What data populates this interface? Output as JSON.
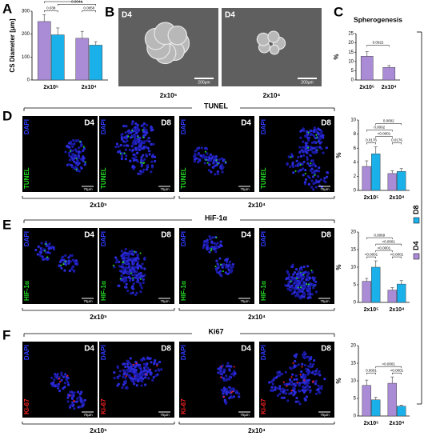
{
  "panel_labels": [
    "A",
    "B",
    "C",
    "D",
    "E",
    "F"
  ],
  "legend": [
    {
      "name": "D8",
      "color": "#1ab0ea"
    },
    {
      "name": "D4",
      "color": "#a98bd6"
    }
  ],
  "panel_b": {
    "images": [
      {
        "day": "D4",
        "scale": "200μm",
        "group": "2x10⁵"
      },
      {
        "day": "D4",
        "scale": "200μm",
        "group": "2x10⁴"
      }
    ]
  },
  "rows": [
    {
      "title": "TUNEL",
      "counterstain": "DAPI",
      "stain": "TUNEL",
      "stain_color": "#22dd22",
      "days": [
        "D4",
        "D8",
        "D4",
        "D8"
      ],
      "scale": "75μm",
      "groups": [
        "2x10⁵",
        "2x10⁴"
      ]
    },
    {
      "title": "HiF-1α",
      "counterstain": "DAPI",
      "stain": "HIF-1α",
      "stain_color": "#22dd22",
      "days": [
        "D4",
        "D8",
        "D4",
        "D8"
      ],
      "scale": "75μm",
      "groups": [
        "2x10⁵",
        "2x10⁴"
      ]
    },
    {
      "title": "Ki67",
      "counterstain": "DAPI",
      "stain": "Ki-67",
      "stain_color": "#ff2222",
      "days": [
        "D4",
        "D8",
        "D4",
        "D8"
      ],
      "scale": "75μm",
      "groups": [
        "2x10⁵",
        "2x10⁴"
      ]
    }
  ],
  "chart_data": [
    {
      "type": "bar",
      "y_label": "CS Diameter [μm]",
      "categories": [
        "2x10⁵",
        "2x10⁴"
      ],
      "series": [
        {
          "color": "#a98bd6",
          "values": [
            255,
            182
          ],
          "errors": [
            30,
            30
          ]
        },
        {
          "color": "#1ab0ea",
          "values": [
            197,
            152
          ],
          "errors": [
            30,
            15
          ]
        }
      ],
      "ylim": [
        0,
        300
      ],
      "yticks": [
        0,
        100,
        200,
        300
      ],
      "significance": [
        "0.038",
        "0.0058",
        "0.0044",
        "0.0020"
      ]
    },
    {
      "type": "bar",
      "title": "Spherogenesis",
      "y_label": "%",
      "categories": [
        "2x10⁵",
        "2x10⁴"
      ],
      "series": [
        {
          "color": "#a98bd6",
          "values": [
            12.8,
            6.8
          ],
          "errors": [
            2.5,
            1
          ]
        }
      ],
      "ylim": [
        0,
        25
      ],
      "yticks": [
        0,
        5,
        10,
        15,
        20,
        25
      ],
      "significance": [
        "0.0022"
      ]
    },
    {
      "type": "bar",
      "y_label": "%",
      "categories": [
        "2x10⁵",
        "2x10⁴"
      ],
      "series": [
        {
          "color": "#a98bd6",
          "values": [
            3.4,
            2.4
          ],
          "errors": [
            0.8,
            0.4
          ]
        },
        {
          "color": "#1ab0ea",
          "values": [
            5.2,
            2.7
          ],
          "errors": [
            1,
            0.4
          ]
        }
      ],
      "ylim": [
        0,
        10
      ],
      "yticks": [
        0,
        2,
        4,
        6,
        8,
        10
      ],
      "significance": [
        "0.0176",
        "0.0176",
        "<0.0001",
        "0.0002",
        "0.0002"
      ]
    },
    {
      "type": "bar",
      "y_label": "%",
      "categories": [
        "2x10⁵",
        "2x10⁴"
      ],
      "series": [
        {
          "color": "#a98bd6",
          "values": [
            6,
            3.5
          ],
          "errors": [
            0.8,
            0.7
          ]
        },
        {
          "color": "#1ab0ea",
          "values": [
            10,
            5.2
          ],
          "errors": [
            1.8,
            1
          ]
        }
      ],
      "ylim": [
        0,
        20
      ],
      "yticks": [
        0,
        5,
        10,
        15,
        20
      ],
      "significance": [
        "<0.0001",
        "<0.0001",
        "<0.0001",
        "<0.0001",
        "0.0069"
      ]
    },
    {
      "type": "bar",
      "y_label": "%",
      "categories": [
        "2x10⁵",
        "2x10⁴"
      ],
      "series": [
        {
          "color": "#a98bd6",
          "values": [
            8.7,
            9.3
          ],
          "errors": [
            1.5,
            1.8
          ]
        },
        {
          "color": "#1ab0ea",
          "values": [
            4.6,
            2.8
          ],
          "errors": [
            0.7,
            0.3
          ]
        }
      ],
      "ylim": [
        0,
        20
      ],
      "yticks": [
        0,
        5,
        10,
        15,
        20
      ],
      "significance": [
        "0.0001",
        "<0.0001",
        "<0.0001"
      ]
    }
  ]
}
